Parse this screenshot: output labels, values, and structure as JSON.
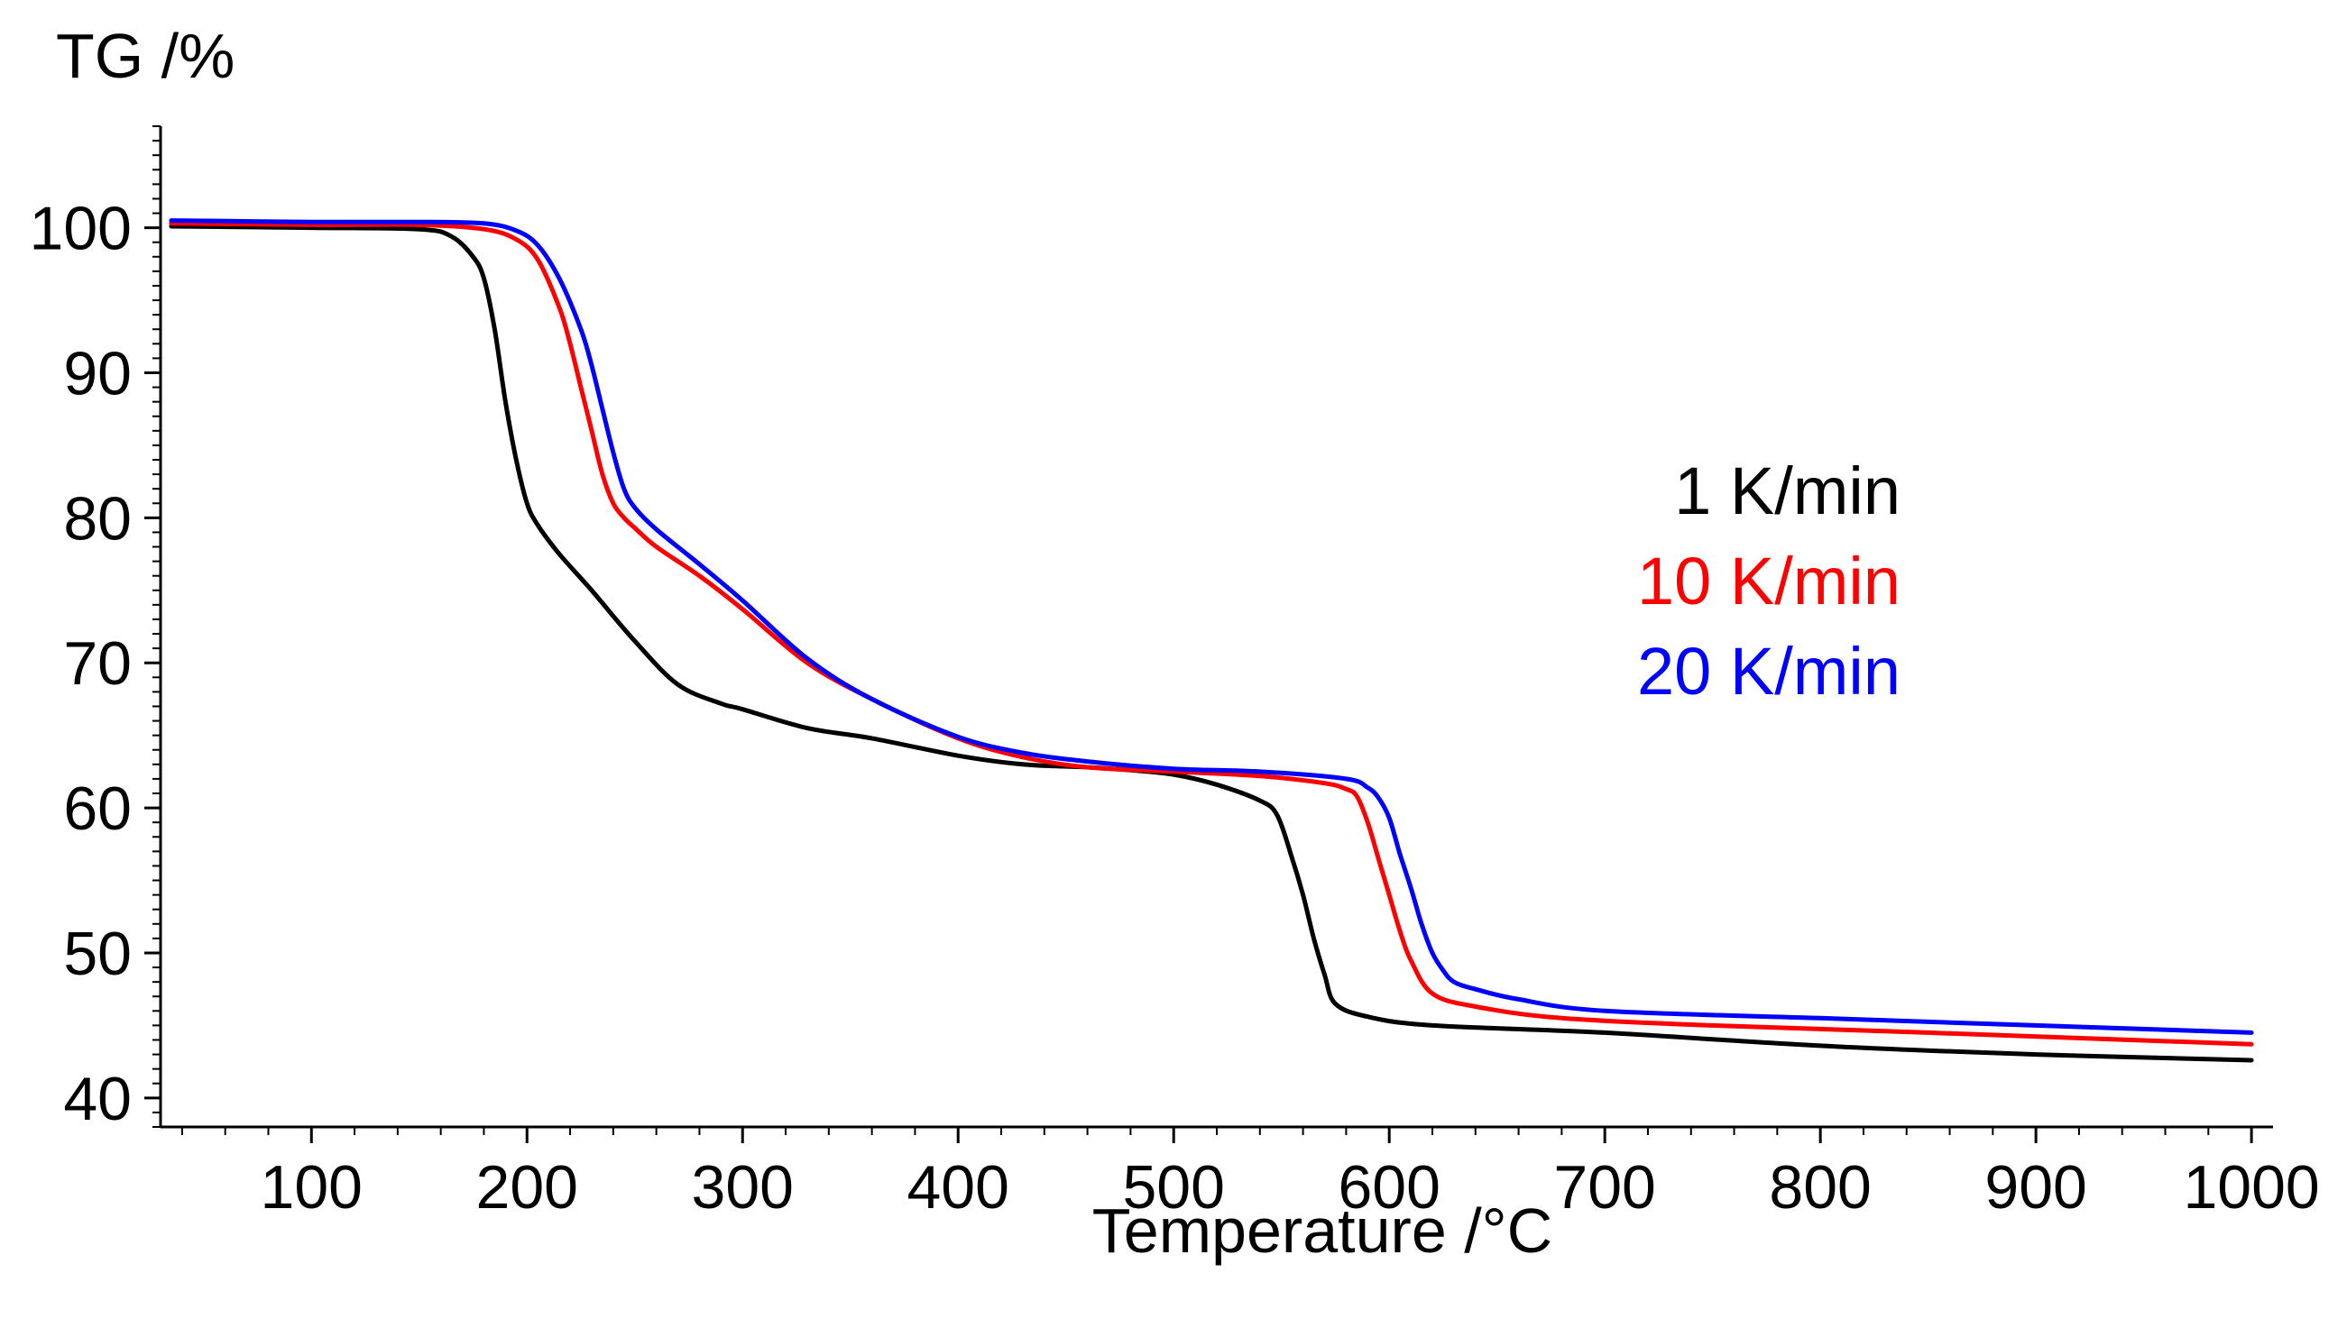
{
  "chart_data": {
    "type": "line",
    "title": "",
    "ylabel": "TG /%",
    "xlabel": "Temperature /°C",
    "xlim": [
      30,
      1010
    ],
    "ylim": [
      38,
      107
    ],
    "xticks": [
      100,
      200,
      300,
      400,
      500,
      600,
      700,
      800,
      900,
      1000
    ],
    "yticks": [
      40,
      50,
      60,
      70,
      80,
      90,
      100
    ],
    "legend_position": "right",
    "series": [
      {
        "name": "1 K/min",
        "color": "#000000",
        "x": [
          35,
          100,
          150,
          165,
          175,
          180,
          185,
          190,
          195,
          200,
          205,
          215,
          230,
          250,
          270,
          290,
          300,
          330,
          360,
          400,
          430,
          460,
          480,
          500,
          520,
          540,
          548,
          555,
          560,
          565,
          570,
          575,
          590,
          620,
          700,
          800,
          900,
          1000
        ],
        "y": [
          100.1,
          100.0,
          99.9,
          99.4,
          98.0,
          96.5,
          93.0,
          88.0,
          84.0,
          81.0,
          79.5,
          77.5,
          75.0,
          71.5,
          68.5,
          67.2,
          66.8,
          65.5,
          64.8,
          63.6,
          63.0,
          62.8,
          62.6,
          62.3,
          61.6,
          60.5,
          59.5,
          56.5,
          54.0,
          51.0,
          48.5,
          46.5,
          45.6,
          45.0,
          44.5,
          43.6,
          43.0,
          42.6
        ]
      },
      {
        "name": "10 K/min",
        "color": "#ff0000",
        "x": [
          35,
          100,
          150,
          180,
          195,
          205,
          215,
          220,
          225,
          230,
          235,
          240,
          245,
          250,
          260,
          280,
          300,
          330,
          360,
          400,
          430,
          460,
          500,
          540,
          570,
          580,
          585,
          590,
          595,
          600,
          605,
          610,
          620,
          640,
          680,
          750,
          850,
          1000
        ],
        "y": [
          100.3,
          100.2,
          100.2,
          99.9,
          99.2,
          97.8,
          94.5,
          92.0,
          89.0,
          86.0,
          83.0,
          81.0,
          80.0,
          79.3,
          78.0,
          76.0,
          73.7,
          70.0,
          67.5,
          64.8,
          63.5,
          62.8,
          62.5,
          62.2,
          61.7,
          61.3,
          60.8,
          59.0,
          56.5,
          54.0,
          51.5,
          49.5,
          47.2,
          46.3,
          45.5,
          45.0,
          44.5,
          43.7
        ]
      },
      {
        "name": "20 K/min",
        "color": "#0000ff",
        "x": [
          35,
          100,
          150,
          180,
          195,
          205,
          215,
          225,
          230,
          235,
          240,
          245,
          250,
          260,
          280,
          300,
          330,
          360,
          400,
          430,
          460,
          500,
          540,
          580,
          590,
          595,
          600,
          605,
          610,
          615,
          620,
          625,
          630,
          640,
          660,
          700,
          800,
          900,
          1000
        ],
        "y": [
          100.5,
          100.4,
          100.4,
          100.3,
          99.8,
          98.8,
          96.5,
          93.0,
          90.5,
          87.5,
          84.5,
          82.0,
          80.7,
          79.2,
          76.8,
          74.3,
          70.3,
          67.5,
          64.9,
          63.8,
          63.2,
          62.7,
          62.5,
          62.0,
          61.4,
          60.7,
          59.3,
          56.8,
          54.5,
          52.0,
          50.0,
          48.8,
          48.0,
          47.5,
          46.8,
          46.0,
          45.5,
          45.0,
          44.5
        ]
      }
    ]
  }
}
